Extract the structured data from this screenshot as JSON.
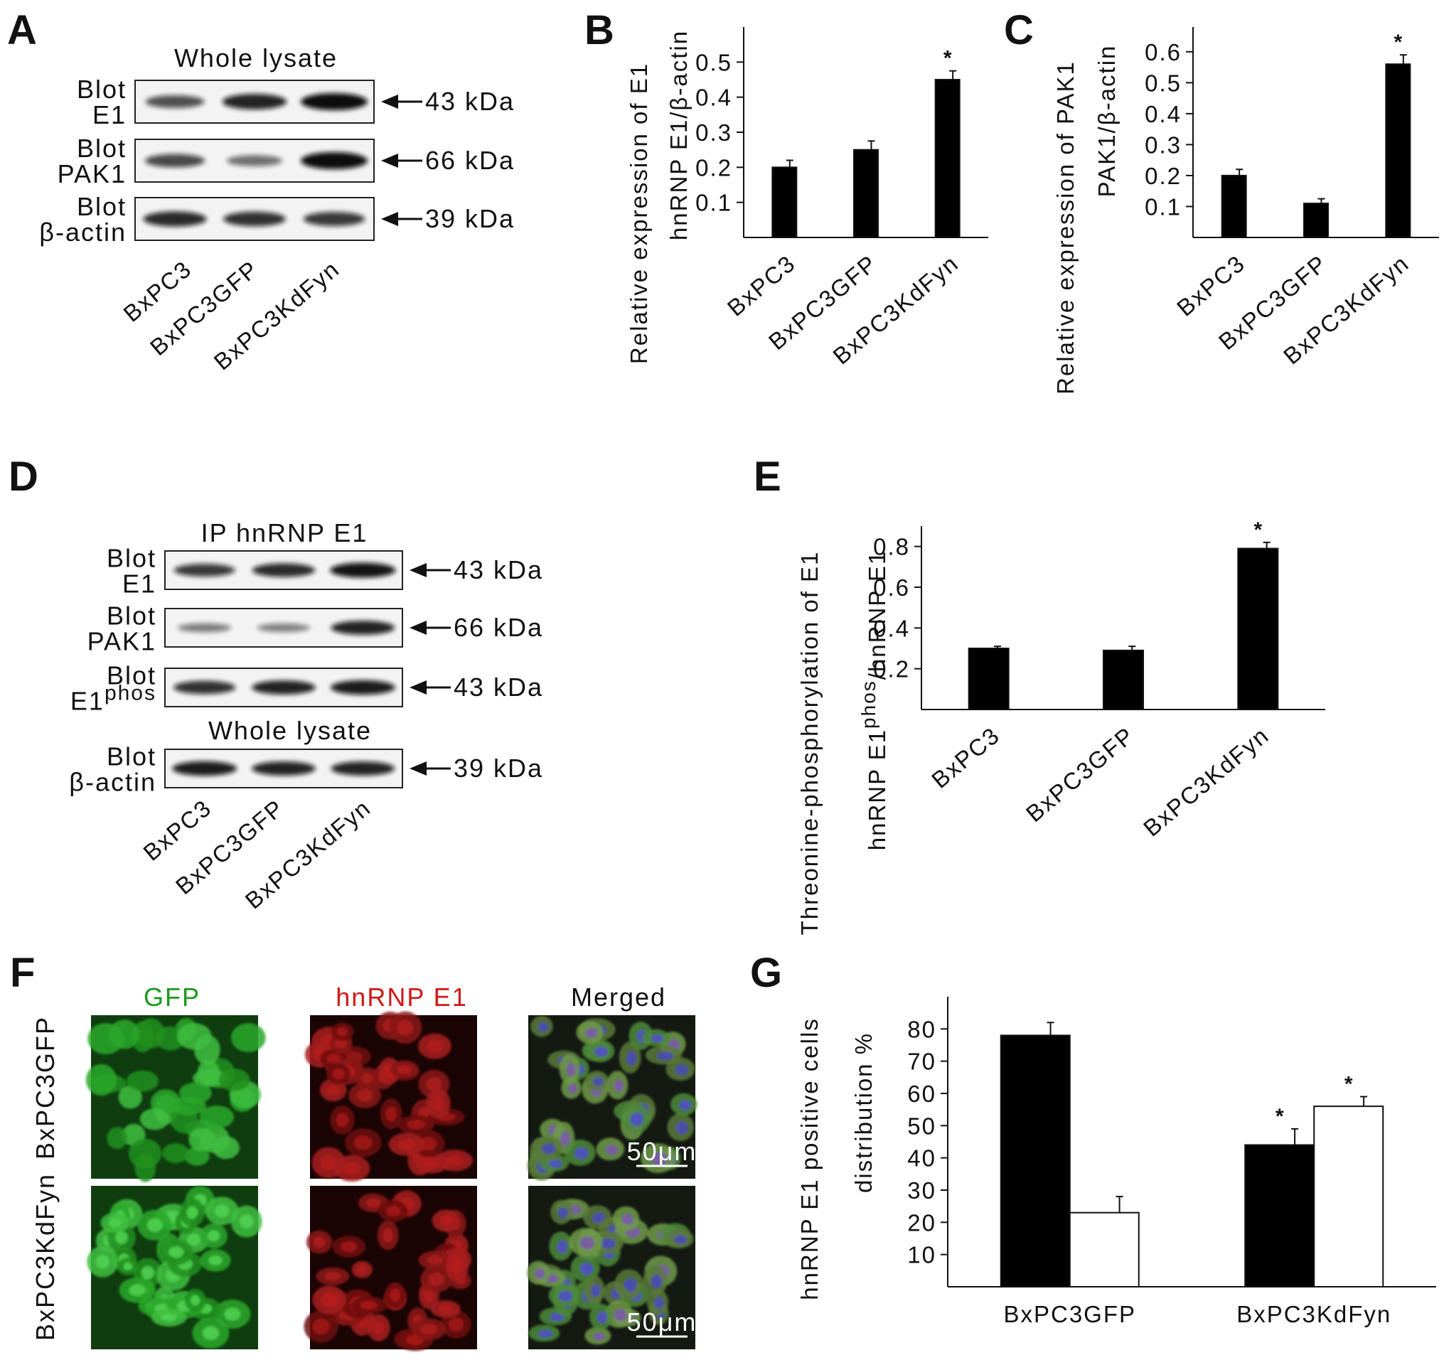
{
  "panels": {
    "A": {
      "letter": "A",
      "title": "Whole lysate",
      "blots": [
        {
          "label1": "Blot",
          "label2": "E1",
          "kda": "43 kDa",
          "bands": [
            0.55,
            0.85,
            1.0
          ]
        },
        {
          "label1": "Blot",
          "label2": "PAK1",
          "kda": "66 kDa",
          "bands": [
            0.6,
            0.35,
            1.0
          ]
        },
        {
          "label1": "Blot",
          "label2": "β-actin",
          "kda": "39 kDa",
          "bands": [
            0.8,
            0.75,
            0.7
          ]
        }
      ],
      "lanes": [
        "BxPC3",
        "BxPC3GFP",
        "BxPC3KdFyn"
      ]
    },
    "B": {
      "letter": "B"
    },
    "C": {
      "letter": "C"
    },
    "D": {
      "letter": "D",
      "title": "IP  hnRNP  E1",
      "title2": "Whole lysate",
      "blots": [
        {
          "label1": "Blot",
          "label2": "E1",
          "kda": "43 kDa",
          "bands": [
            0.7,
            0.8,
            0.95
          ]
        },
        {
          "label1": "Blot",
          "label2": "PAK1",
          "kda": "66 kDa",
          "bands": [
            0.25,
            0.22,
            0.85
          ]
        },
        {
          "label1": "Blot",
          "label2": "E1",
          "label2sup": "phos",
          "kda": "43 kDa",
          "bands": [
            0.75,
            0.85,
            0.9
          ]
        },
        {
          "label1": "Blot",
          "label2": "β-actin",
          "kda": "39 kDa",
          "bands": [
            0.9,
            0.85,
            0.85
          ]
        }
      ],
      "lanes": [
        "BxPC3",
        "BxPC3GFP",
        "BxPC3KdFyn"
      ]
    },
    "E": {
      "letter": "E"
    },
    "F": {
      "letter": "F",
      "col_headers": [
        "GFP",
        "hnRNP E1",
        "Merged"
      ],
      "header_colors": [
        "#1a9a1a",
        "#d01818",
        "#111111"
      ],
      "row_labels": [
        "BxPC3GFP",
        "BxPC3KdFyn"
      ],
      "scale_bar": "50μm"
    },
    "G": {
      "letter": "G"
    }
  },
  "chart_data": [
    {
      "panel": "B",
      "type": "bar",
      "categories": [
        "BxPC3",
        "BxPC3GFP",
        "BxPC3KdFyn"
      ],
      "values": [
        0.2,
        0.25,
        0.45
      ],
      "errors": [
        0.02,
        0.025,
        0.025
      ],
      "significance": [
        "",
        "",
        "*"
      ],
      "ylabel_lines": [
        "Relative expression of E1",
        "hnRNP E1/β-actin"
      ],
      "yticks": [
        "0.1",
        "0.2",
        "0.3",
        "0.4",
        "0.5"
      ],
      "ylim": [
        0,
        0.6
      ],
      "bar_color": "#000000"
    },
    {
      "panel": "C",
      "type": "bar",
      "categories": [
        "BxPC3",
        "BxPC3GFP",
        "BxPC3KdFyn"
      ],
      "values": [
        0.2,
        0.11,
        0.56
      ],
      "errors": [
        0.02,
        0.015,
        0.03
      ],
      "significance": [
        "",
        "",
        "*"
      ],
      "ylabel_lines": [
        "Relative expression of PAK1",
        "PAK1/β-actin"
      ],
      "yticks": [
        "0.1",
        "0.2",
        "0.3",
        "0.4",
        "0.5",
        "0.6"
      ],
      "ylim": [
        0,
        0.68
      ],
      "bar_color": "#000000"
    },
    {
      "panel": "E",
      "type": "bar",
      "categories": [
        "BxPC3",
        "BxPC3GFP",
        "BxPC3KdFyn"
      ],
      "values": [
        0.3,
        0.29,
        0.79
      ],
      "errors": [
        0.01,
        0.02,
        0.03
      ],
      "significance": [
        "",
        "",
        "*"
      ],
      "ylabel_lines": [
        "Threonine-phosphorylation of E1",
        "hnRNP E1^phos/hnRNP E1"
      ],
      "yticks": [
        "0.2",
        "0.4",
        "0.6",
        "0.8"
      ],
      "ylim": [
        0,
        0.9
      ],
      "bar_color": "#000000"
    },
    {
      "panel": "G",
      "type": "bar",
      "categories": [
        "BxPC3GFP",
        "BxPC3KdFyn"
      ],
      "series": [
        {
          "values": [
            78,
            44
          ],
          "errors": [
            4,
            5
          ],
          "significance": [
            "",
            "*"
          ],
          "color": "#000000"
        },
        {
          "values": [
            23,
            56
          ],
          "errors": [
            5,
            3
          ],
          "significance": [
            "",
            "*"
          ],
          "color": "#ffffff"
        }
      ],
      "ylabel_lines": [
        "hnRNP E1 positive cells",
        "distribution %"
      ],
      "yticks": [
        "10",
        "20",
        "30",
        "40",
        "50",
        "60",
        "70",
        "80"
      ],
      "ylim": [
        0,
        90
      ]
    }
  ]
}
